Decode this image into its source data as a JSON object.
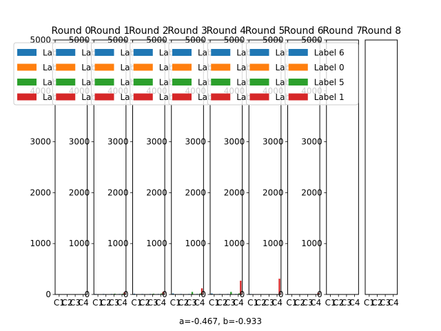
{
  "figure": {
    "caption": "a=-0.467, b=-0.933",
    "colors": {
      "Label 6": "#1f77b4",
      "Label 0": "#ff7f0e",
      "Label 5": "#2ca02c",
      "Label 1": "#d62728"
    }
  },
  "chart_data": [
    {
      "type": "bar",
      "title": "Round 0",
      "categories": [
        "C1",
        "C2",
        "C3",
        "C4"
      ],
      "ylim": [
        0,
        5000
      ],
      "yticks": [
        0,
        1000,
        2000,
        3000,
        4000,
        5000
      ],
      "legend": "top-left",
      "series": [
        {
          "name": "Label 6",
          "values": [
            0,
            0,
            0,
            0
          ]
        },
        {
          "name": "Label 0",
          "values": [
            0,
            0,
            0,
            0
          ]
        },
        {
          "name": "Label 5",
          "values": [
            0,
            0,
            0,
            0
          ]
        },
        {
          "name": "Label 1",
          "values": [
            0,
            0,
            0,
            0
          ]
        }
      ]
    },
    {
      "type": "bar",
      "title": "Round 1",
      "categories": [
        "C1",
        "C2",
        "C3",
        "C4"
      ],
      "ylim": [
        0,
        5000
      ],
      "yticks": [
        0,
        1000,
        2000,
        3000,
        4000,
        5000
      ],
      "legend": "top-left",
      "series": [
        {
          "name": "Label 6",
          "values": [
            10,
            10,
            10,
            10
          ]
        },
        {
          "name": "Label 0",
          "values": [
            0,
            0,
            0,
            0
          ]
        },
        {
          "name": "Label 5",
          "values": [
            0,
            0,
            15,
            15
          ]
        },
        {
          "name": "Label 1",
          "values": [
            0,
            0,
            0,
            40
          ]
        }
      ]
    },
    {
      "type": "bar",
      "title": "Round 2",
      "categories": [
        "C1",
        "C2",
        "C3",
        "C4"
      ],
      "ylim": [
        0,
        5000
      ],
      "yticks": [
        0,
        1000,
        2000,
        3000,
        4000,
        5000
      ],
      "legend": "top-left",
      "series": [
        {
          "name": "Label 6",
          "values": [
            15,
            10,
            10,
            10
          ]
        },
        {
          "name": "Label 0",
          "values": [
            0,
            0,
            0,
            0
          ]
        },
        {
          "name": "Label 5",
          "values": [
            0,
            0,
            15,
            20
          ]
        },
        {
          "name": "Label 1",
          "values": [
            0,
            0,
            0,
            50
          ]
        }
      ]
    },
    {
      "type": "bar",
      "title": "Round 3",
      "categories": [
        "C1",
        "C2",
        "C3",
        "C4"
      ],
      "ylim": [
        0,
        5000
      ],
      "yticks": [
        0,
        1000,
        2000,
        3000,
        4000,
        5000
      ],
      "legend": "top-left",
      "series": [
        {
          "name": "Label 6",
          "values": [
            20,
            10,
            10,
            10
          ]
        },
        {
          "name": "Label 0",
          "values": [
            0,
            0,
            0,
            0
          ]
        },
        {
          "name": "Label 5",
          "values": [
            0,
            0,
            50,
            20
          ]
        },
        {
          "name": "Label 1",
          "values": [
            0,
            0,
            0,
            120
          ]
        }
      ]
    },
    {
      "type": "bar",
      "title": "Round 4",
      "categories": [
        "C1",
        "C2",
        "C3",
        "C4"
      ],
      "ylim": [
        0,
        5000
      ],
      "yticks": [
        0,
        1000,
        2000,
        3000,
        4000,
        5000
      ],
      "legend": "top-left",
      "series": [
        {
          "name": "Label 6",
          "values": [
            20,
            10,
            10,
            10
          ]
        },
        {
          "name": "Label 0",
          "values": [
            0,
            0,
            0,
            0
          ]
        },
        {
          "name": "Label 5",
          "values": [
            0,
            0,
            50,
            20
          ]
        },
        {
          "name": "Label 1",
          "values": [
            0,
            0,
            0,
            270
          ]
        }
      ]
    },
    {
      "type": "bar",
      "title": "Round 5",
      "categories": [
        "C1",
        "C2",
        "C3",
        "C4"
      ],
      "ylim": [
        0,
        5000
      ],
      "yticks": [
        0,
        1000,
        2000,
        3000,
        4000,
        5000
      ],
      "legend": "top-left",
      "series": [
        {
          "name": "Label 6",
          "values": [
            10,
            0,
            0,
            0
          ]
        },
        {
          "name": "Label 0",
          "values": [
            0,
            0,
            0,
            0
          ]
        },
        {
          "name": "Label 5",
          "values": [
            0,
            0,
            0,
            0
          ]
        },
        {
          "name": "Label 1",
          "values": [
            0,
            0,
            0,
            310
          ]
        }
      ]
    },
    {
      "type": "bar",
      "title": "Round 6",
      "categories": [
        "C1",
        "C2",
        "C3",
        "C4"
      ],
      "ylim": [
        0,
        5000
      ],
      "yticks": [
        0,
        1000,
        2000,
        3000,
        4000,
        5000
      ],
      "legend": "top-left",
      "series": [
        {
          "name": "Label 6",
          "values": [
            0,
            0,
            0,
            0
          ]
        },
        {
          "name": "Label 0",
          "values": [
            0,
            0,
            0,
            0
          ]
        },
        {
          "name": "Label 5",
          "values": [
            0,
            0,
            0,
            0
          ]
        },
        {
          "name": "Label 1",
          "values": [
            0,
            0,
            0,
            30
          ]
        }
      ]
    },
    {
      "type": "bar",
      "title": "Round 7",
      "categories": [
        "C1",
        "C2",
        "C3",
        "C4"
      ],
      "ylim": [
        0,
        5000
      ],
      "yticks": [
        0,
        1000,
        2000,
        3000,
        4000,
        5000
      ],
      "legend": "top-left",
      "series": [
        {
          "name": "Label 6",
          "values": [
            0,
            0,
            0,
            0
          ]
        },
        {
          "name": "Label 0",
          "values": [
            0,
            0,
            0,
            0
          ]
        },
        {
          "name": "Label 5",
          "values": [
            0,
            0,
            0,
            0
          ]
        },
        {
          "name": "Label 1",
          "values": [
            0,
            0,
            0,
            0
          ]
        }
      ]
    },
    {
      "type": "bar",
      "title": "Round 8",
      "categories": [
        "C1",
        "C2",
        "C3",
        "C4"
      ],
      "ylim": [
        0,
        5000
      ],
      "yticks": [],
      "legend": "none",
      "series": [
        {
          "name": "Label 6",
          "values": [
            0,
            0,
            0,
            0
          ]
        },
        {
          "name": "Label 0",
          "values": [
            0,
            0,
            0,
            0
          ]
        },
        {
          "name": "Label 5",
          "values": [
            0,
            0,
            0,
            0
          ]
        },
        {
          "name": "Label 1",
          "values": [
            0,
            0,
            0,
            0
          ]
        }
      ]
    }
  ]
}
